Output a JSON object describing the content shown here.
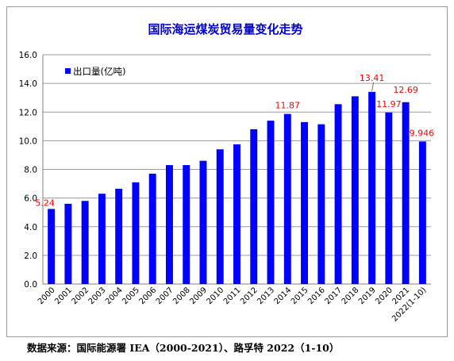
{
  "chart_data": {
    "type": "bar",
    "title": "国际海运煤炭贸易量变化走势",
    "categories": [
      "2000",
      "2001",
      "2002",
      "2003",
      "2004",
      "2005",
      "2006",
      "2007",
      "2008",
      "2009",
      "2010",
      "2011",
      "2012",
      "2013",
      "2014",
      "2015",
      "2016",
      "2017",
      "2018",
      "2019",
      "2020",
      "2021",
      "2022(1-10)"
    ],
    "series": [
      {
        "name": "出口量(亿吨)",
        "values": [
          5.24,
          5.6,
          5.8,
          6.3,
          6.65,
          7.1,
          7.7,
          8.3,
          8.3,
          8.6,
          9.4,
          9.75,
          10.8,
          11.4,
          11.87,
          11.3,
          11.15,
          12.55,
          13.1,
          13.41,
          11.97,
          12.69,
          9.946
        ]
      }
    ],
    "data_labels": [
      {
        "index": 0,
        "text": "5.24"
      },
      {
        "index": 14,
        "text": "11.87"
      },
      {
        "index": 19,
        "text": "13.41"
      },
      {
        "index": 20,
        "text": "11.97"
      },
      {
        "index": 21,
        "text": "12.69"
      },
      {
        "index": 22,
        "text": "9.946"
      }
    ],
    "y_ticks": [
      "0.0",
      "2.0",
      "4.0",
      "6.0",
      "8.0",
      "10.0",
      "12.0",
      "14.0",
      "16.0"
    ],
    "ylim": [
      0,
      16
    ],
    "grid": true,
    "legend": "top-left",
    "colors": {
      "bar": "#0000ff",
      "title": "#0000cc",
      "data_label": "#ff0000",
      "grid": "#9a9a9a"
    }
  },
  "source_note": "数据来源：国际能源署 IEA（2000-2021）、路孚特 2022（1-10）"
}
